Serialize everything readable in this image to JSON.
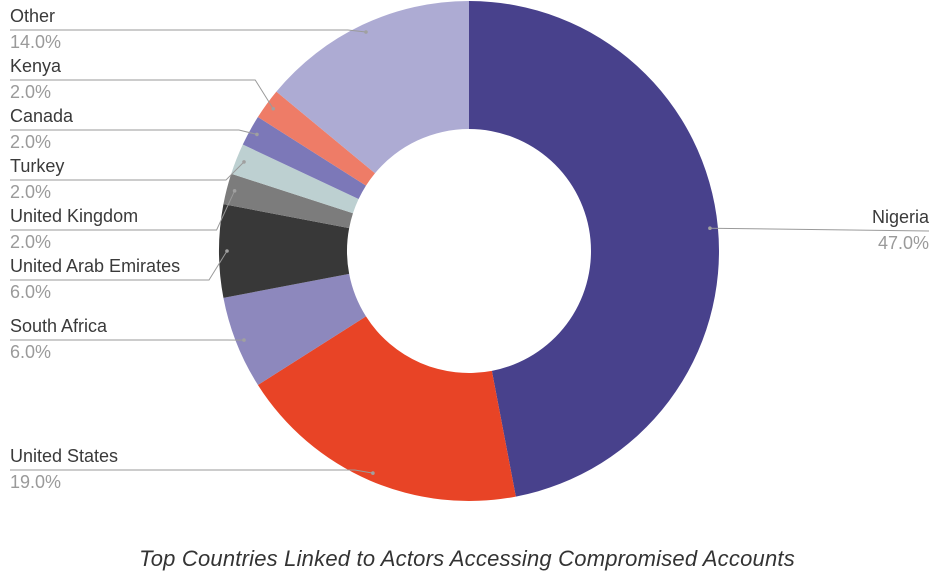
{
  "caption": "Top Countries Linked to Actors Accessing Compromised Accounts",
  "chart_data": {
    "type": "pie",
    "variant": "donut",
    "start_angle": "12 o'clock",
    "direction": "clockwise",
    "series": [
      {
        "name": "Nigeria",
        "value": 47.0,
        "label": "47.0%",
        "color": "#48418c"
      },
      {
        "name": "United States",
        "value": 19.0,
        "label": "19.0%",
        "color": "#e84426"
      },
      {
        "name": "South Africa",
        "value": 6.0,
        "label": "6.0%",
        "color": "#8d88bd"
      },
      {
        "name": "United Arab Emirates",
        "value": 6.0,
        "label": "6.0%",
        "color": "#383838"
      },
      {
        "name": "United Kingdom",
        "value": 2.0,
        "label": "2.0%",
        "color": "#7c7c7c"
      },
      {
        "name": "Turkey",
        "value": 2.0,
        "label": "2.0%",
        "color": "#bdd0d1"
      },
      {
        "name": "Canada",
        "value": 2.0,
        "label": "2.0%",
        "color": "#7c78b8"
      },
      {
        "name": "Kenya",
        "value": 2.0,
        "label": "2.0%",
        "color": "#ee7c67"
      },
      {
        "name": "Other",
        "value": 14.0,
        "label": "14.0%",
        "color": "#adabd3"
      }
    ]
  }
}
